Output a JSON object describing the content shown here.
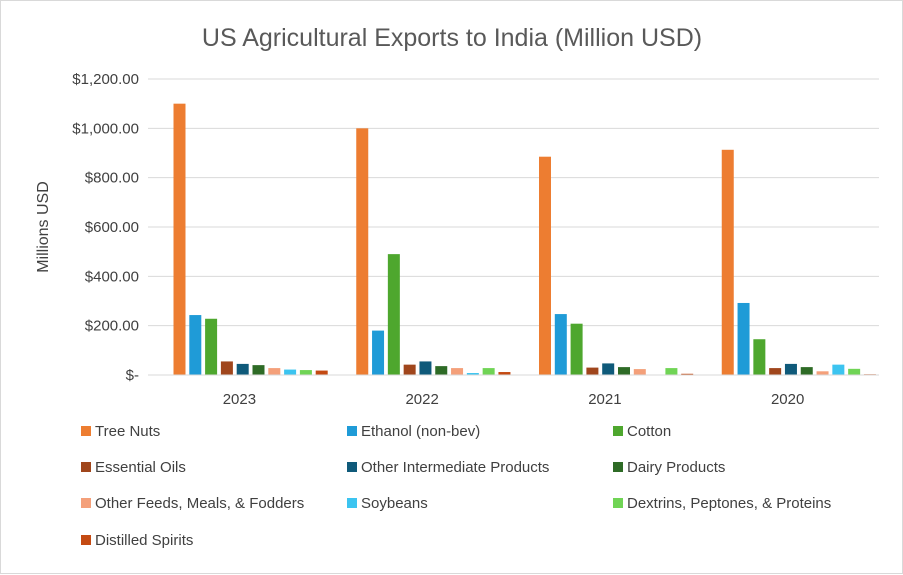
{
  "chart_data": {
    "type": "bar",
    "title": "US Agricultural Exports to India (Million USD)",
    "ylabel": "Millions USD",
    "xlabel": "",
    "ylim": [
      0,
      1200
    ],
    "yticks": [
      0,
      200,
      400,
      600,
      800,
      1000,
      1200
    ],
    "ytick_labels": [
      "$-",
      "$200.00",
      "$400.00",
      "$600.00",
      "$800.00",
      "$1,000.00",
      "$1,200.00"
    ],
    "grid": true,
    "legend_position": "bottom",
    "categories": [
      "2023",
      "2022",
      "2021",
      "2020"
    ],
    "series": [
      {
        "name": "Tree Nuts",
        "color": "#ED7D31",
        "values": [
          1100,
          1000,
          885,
          913
        ]
      },
      {
        "name": "Ethanol (non-bev)",
        "color": "#1F9BD7",
        "values": [
          243,
          180,
          247,
          292
        ]
      },
      {
        "name": "Cotton",
        "color": "#4EA72E",
        "values": [
          228,
          490,
          208,
          145
        ]
      },
      {
        "name": "Essential Oils",
        "color": "#A0461C",
        "values": [
          55,
          42,
          30,
          28
        ]
      },
      {
        "name": "Other Intermediate Products",
        "color": "#0F5A7A",
        "values": [
          45,
          55,
          47,
          45
        ]
      },
      {
        "name": "Dairy Products",
        "color": "#2E6B26",
        "values": [
          40,
          36,
          32,
          32
        ]
      },
      {
        "name": "Other Feeds, Meals, & Fodders",
        "color": "#F4A07A",
        "values": [
          28,
          28,
          24,
          15
        ]
      },
      {
        "name": "Soybeans",
        "color": "#3CC4F0",
        "values": [
          22,
          8,
          2,
          42
        ]
      },
      {
        "name": "Dextrins, Peptones, & Proteins",
        "color": "#70D455",
        "values": [
          20,
          28,
          28,
          25
        ]
      },
      {
        "name": "Distilled Spirits",
        "color": "#C44A12",
        "values": [
          18,
          12,
          5,
          3
        ]
      }
    ]
  }
}
